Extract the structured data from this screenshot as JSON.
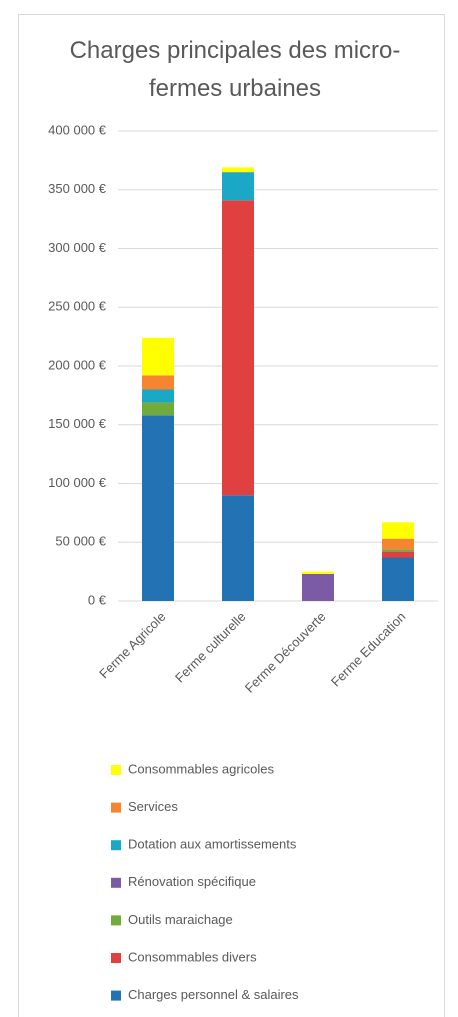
{
  "chart_data": {
    "type": "stacked_bar",
    "title": "Charges principales des micro-fermes urbaines",
    "categories": [
      "Ferme Agricole",
      "Ferme culturelle",
      "Ferme Découverte",
      "Ferme Education"
    ],
    "series": [
      {
        "name": "Charges personnel & salaires",
        "color": "#2272b4",
        "values": [
          158000,
          90000,
          0,
          37000
        ]
      },
      {
        "name": "Consommables divers",
        "color": "#e0403f",
        "values": [
          0,
          251000,
          0,
          5000
        ]
      },
      {
        "name": "Outils maraichage",
        "color": "#72aa3c",
        "values": [
          11000,
          0,
          0,
          2000
        ]
      },
      {
        "name": "Rénovation spécifique",
        "color": "#7b5aa6",
        "values": [
          0,
          0,
          23000,
          0
        ]
      },
      {
        "name": "Dotation aux amortissements",
        "color": "#1ba8c6",
        "values": [
          11000,
          24000,
          0,
          0
        ]
      },
      {
        "name": "Services",
        "color": "#f78431",
        "values": [
          12000,
          0,
          0,
          9000
        ]
      },
      {
        "name": "Consommables agricoles",
        "color": "#ffff00",
        "values": [
          32000,
          4000,
          2000,
          14000
        ]
      }
    ],
    "ylim": [
      0,
      400000
    ],
    "yticks": [
      {
        "value": 0,
        "label": "0 €"
      },
      {
        "value": 50000,
        "label": "50 000 €"
      },
      {
        "value": 100000,
        "label": "100 000 €"
      },
      {
        "value": 150000,
        "label": "150 000 €"
      },
      {
        "value": 200000,
        "label": "200 000 €"
      },
      {
        "value": 250000,
        "label": "250 000 €"
      },
      {
        "value": 300000,
        "label": "300 000 €"
      },
      {
        "value": 350000,
        "label": "350 000 €"
      },
      {
        "value": 400000,
        "label": "400 000 €"
      }
    ],
    "grid": true,
    "legend": "bottom"
  }
}
